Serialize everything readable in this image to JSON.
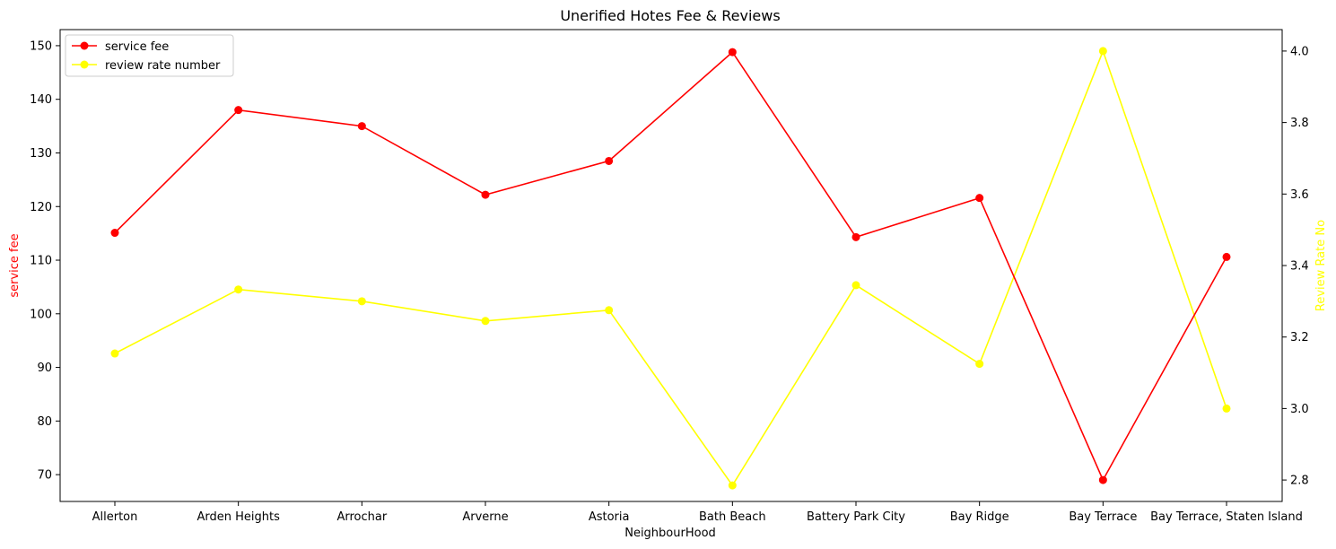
{
  "chart_data": {
    "type": "line",
    "title": "Unerified Hotes Fee & Reviews",
    "xlabel": "NeighbourHood",
    "ylabel_left": "service fee",
    "ylabel_right": "Review Rate No",
    "categories": [
      "Allerton",
      "Arden Heights",
      "Arrochar",
      "Arverne",
      "Astoria",
      "Bath Beach",
      "Battery Park City",
      "Bay Ridge",
      "Bay Terrace",
      "Bay Terrace, Staten Island"
    ],
    "ylim_left": [
      65,
      153
    ],
    "yticks_left": [
      70,
      80,
      90,
      100,
      110,
      120,
      130,
      140,
      150
    ],
    "ylim_right": [
      2.74,
      4.06
    ],
    "yticks_right": [
      2.8,
      3.0,
      3.2,
      3.4,
      3.6,
      3.8,
      4.0
    ],
    "yticks_right_labels": [
      "2.8",
      "3.0",
      "3.2",
      "3.4",
      "3.6",
      "3.8",
      "4.0"
    ],
    "grid": false,
    "legend_position": "top-left",
    "series": [
      {
        "name": "service fee",
        "axis": "left",
        "color": "#ff0000",
        "values": [
          115.1,
          138.0,
          135.0,
          122.2,
          128.5,
          148.8,
          114.3,
          121.6,
          69.0,
          110.6
        ]
      },
      {
        "name": "review rate number",
        "axis": "right",
        "color": "#ffff00",
        "values": [
          3.154,
          3.333,
          3.3,
          3.245,
          3.275,
          2.785,
          3.345,
          3.125,
          4.0,
          3.0
        ]
      }
    ]
  }
}
